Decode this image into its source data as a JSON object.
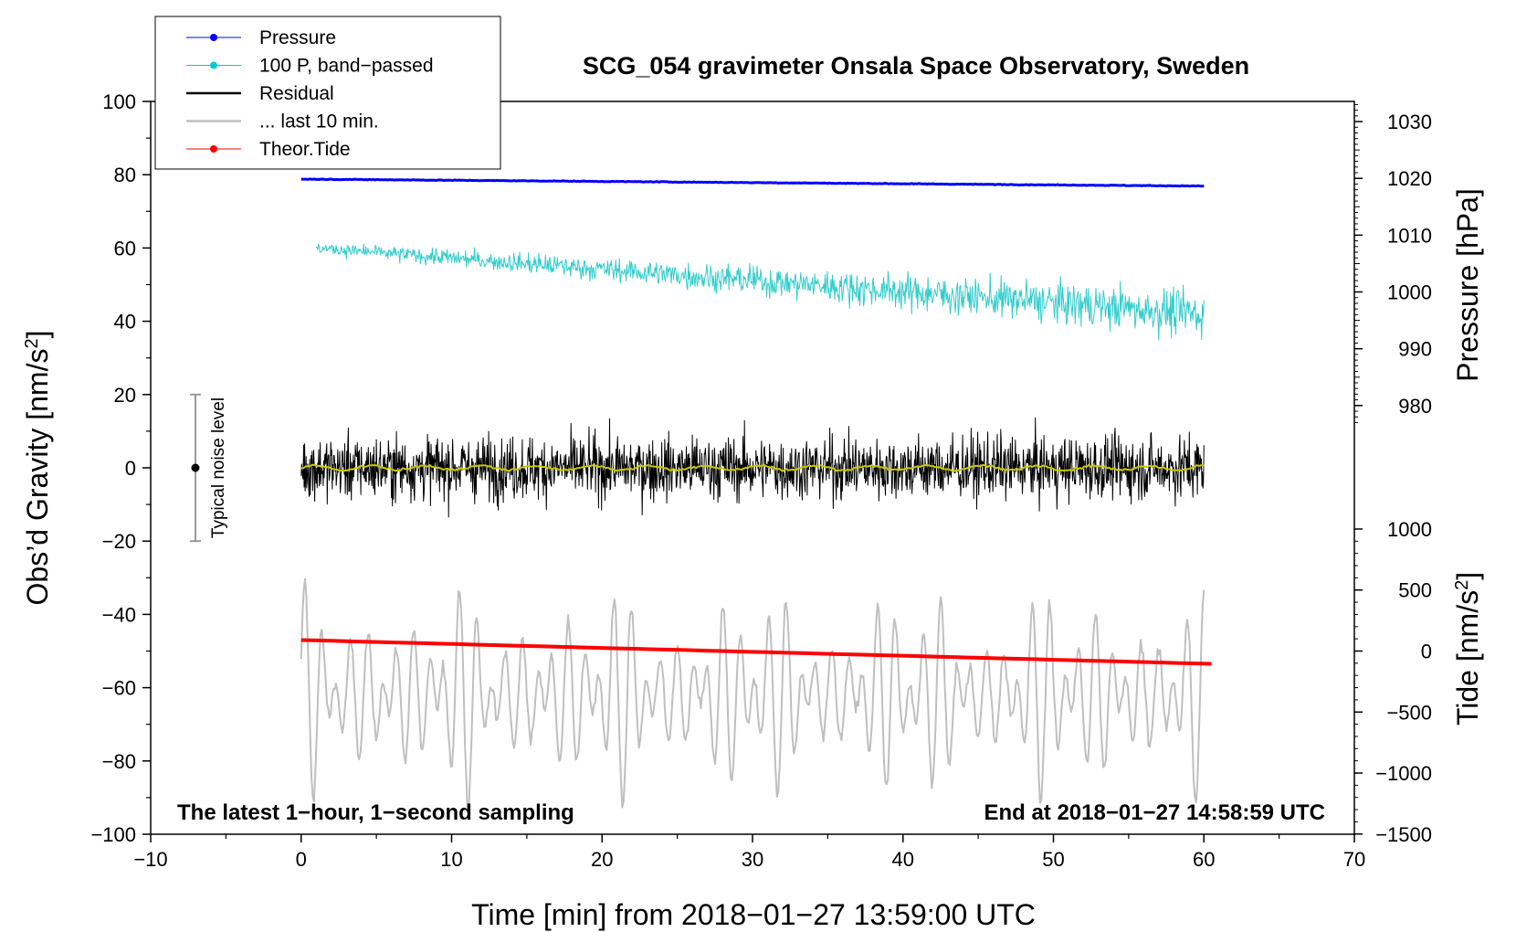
{
  "chart_data": {
    "type": "line",
    "title": "SCG_054 gravimeter Onsala Space Observatory, Sweden",
    "xlabel": "Time [min] from 2018−01−27 13:59:00 UTC",
    "ylabel_main": "Obs’d Gravity [nm/s",
    "ylabel_main_sup": "2",
    "ylabel_main_tail": "]",
    "ylabel_pressure": "Pressure [hPa]",
    "ylabel_tide": "Tide [nm/s",
    "ylabel_tide_sup": "2",
    "ylabel_tide_tail": "]",
    "xlim": [
      -10,
      70
    ],
    "ylim": [
      -100,
      100
    ],
    "x_ticks": [
      -10,
      0,
      10,
      20,
      30,
      40,
      50,
      60,
      70
    ],
    "x_tick_labels": [
      "−10",
      "0",
      "10",
      "20",
      "30",
      "40",
      "50",
      "60",
      "70"
    ],
    "y_ticks": [
      100,
      80,
      60,
      40,
      20,
      0,
      -20,
      -40,
      -60,
      -80,
      -100
    ],
    "y_tick_labels": [
      "100",
      "80",
      "60",
      "40",
      "20",
      "0",
      "−20",
      "−40",
      "−60",
      "−80",
      "−100"
    ],
    "pressure_axis": {
      "ticks": [
        1030,
        1020,
        1010,
        1000,
        990,
        980
      ],
      "labels": [
        "1030",
        "1020",
        "1010",
        "1000",
        "990",
        "980"
      ],
      "gravity_at_1020": 79,
      "gravity_per_hPa": 1.55
    },
    "tide_axis": {
      "ticks": [
        1000,
        500,
        0,
        -500,
        -1000,
        -1500
      ],
      "labels": [
        "1000",
        "500",
        "0",
        "−500",
        "−1000",
        "−1500"
      ],
      "gravity_at_0": -50,
      "gravity_per_unit": 0.0333
    },
    "annotations": {
      "left": "The latest 1−hour, 1−second sampling",
      "right": "End at 2018−01−27 14:58:59 UTC",
      "noise": "Typical noise level",
      "noise_range": [
        -20,
        20
      ]
    },
    "legend": [
      {
        "label": "Pressure",
        "color": "#0000ff",
        "marker": true
      },
      {
        "label": "100 P, band−passed",
        "color": "#00cccc",
        "marker": true
      },
      {
        "label": "Residual",
        "color": "#000000",
        "marker": false
      },
      {
        "label": "... last 10 min.",
        "color": "#c0c0c0",
        "marker": false
      },
      {
        "label": "Theor.Tide",
        "color": "#ff0000",
        "marker": true
      }
    ],
    "series": [
      {
        "name": "Pressure",
        "color": "#0000ff",
        "x_range": [
          0,
          60
        ],
        "start": 78.8,
        "end": 76.9,
        "noise": 0.25
      },
      {
        "name": "100 P, band−passed",
        "color": "#33cccc",
        "x_range": [
          1,
          60
        ],
        "start": 60,
        "end": 42,
        "amp_start": 3,
        "amp_end": 12
      },
      {
        "name": "Residual",
        "color": "#000000",
        "x_range": [
          0,
          60
        ],
        "center": 0,
        "typical_amp": 12,
        "max_amp": 27
      },
      {
        "name": "Residual (smoothed)",
        "color": "#c8c800",
        "x_range": [
          0,
          60
        ],
        "center": 0,
        "amp": 1
      },
      {
        "name": "... last 10 min.",
        "color": "#bfbfbf",
        "x_range": [
          0,
          60
        ],
        "center": -62,
        "amp_min": 12,
        "amp_max": 30
      },
      {
        "name": "Theor.Tide",
        "color": "#ff0000",
        "x_range": [
          0,
          60.5
        ],
        "start": -47,
        "end": -53.5
      }
    ]
  }
}
